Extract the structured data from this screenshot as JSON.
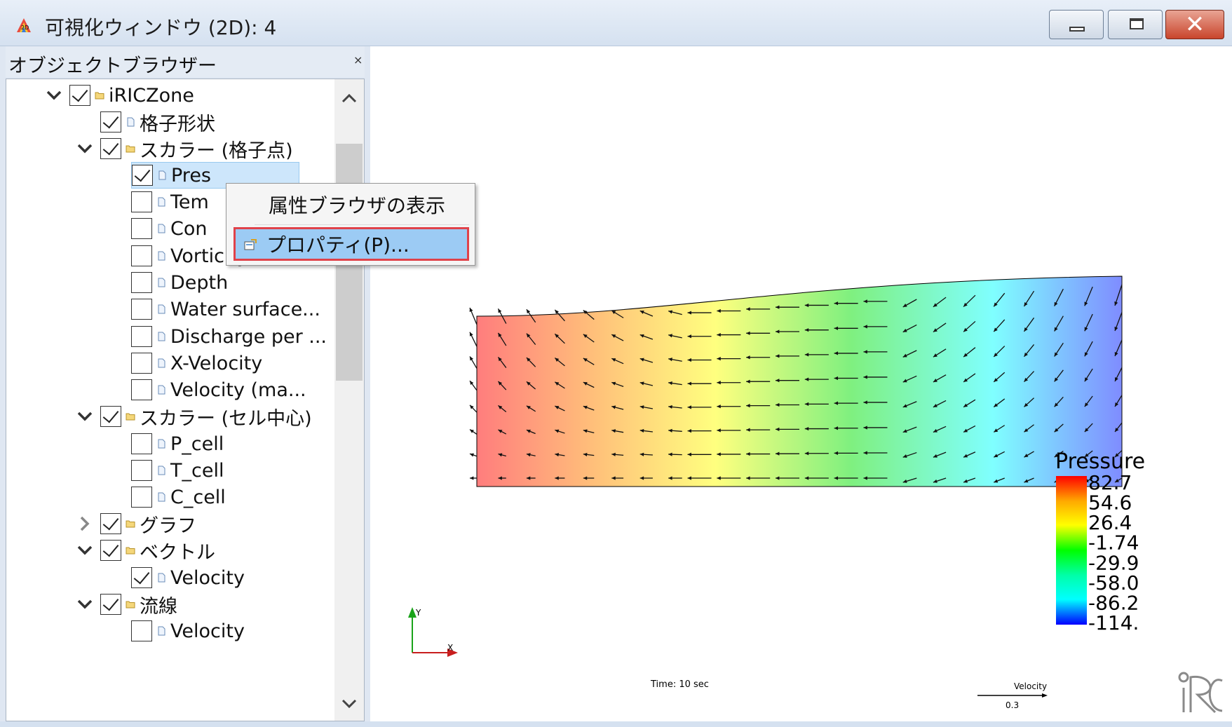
{
  "window": {
    "title": "可視化ウィンドウ (2D): 4",
    "close_glyph": "✕"
  },
  "object_browser": {
    "title": "オブジェクトブラウザー",
    "close_glyph": "×",
    "items": [
      {
        "label": "iRICZone",
        "checked": true,
        "kind": "folder",
        "chevron": "down"
      },
      {
        "label": "格子形状",
        "checked": true,
        "kind": "file"
      },
      {
        "label": "スカラー (格子点)",
        "checked": true,
        "kind": "folder",
        "chevron": "down"
      },
      {
        "label": "Pres",
        "checked": true,
        "kind": "file",
        "selected": true
      },
      {
        "label": "Tem",
        "checked": false,
        "kind": "file"
      },
      {
        "label": "Con",
        "checked": false,
        "kind": "file"
      },
      {
        "label": "Vorticity",
        "checked": false,
        "kind": "file"
      },
      {
        "label": "Depth",
        "checked": false,
        "kind": "file"
      },
      {
        "label": "Water surface...",
        "checked": false,
        "kind": "file"
      },
      {
        "label": "Discharge per ...",
        "checked": false,
        "kind": "file"
      },
      {
        "label": "X-Velocity",
        "checked": false,
        "kind": "file"
      },
      {
        "label": "Velocity (ma...",
        "checked": false,
        "kind": "file"
      },
      {
        "label": "スカラー (セル中心)",
        "checked": true,
        "kind": "folder",
        "chevron": "down"
      },
      {
        "label": "P_cell",
        "checked": false,
        "kind": "file"
      },
      {
        "label": "T_cell",
        "checked": false,
        "kind": "file"
      },
      {
        "label": "C_cell",
        "checked": false,
        "kind": "file"
      },
      {
        "label": "グラフ",
        "checked": true,
        "kind": "folder",
        "chevron": "right"
      },
      {
        "label": "ベクトル",
        "checked": true,
        "kind": "folder",
        "chevron": "down"
      },
      {
        "label": "Velocity",
        "checked": true,
        "kind": "file"
      },
      {
        "label": "流線",
        "checked": true,
        "kind": "folder",
        "chevron": "down"
      },
      {
        "label": "Velocity",
        "checked": false,
        "kind": "file"
      }
    ]
  },
  "context_menu": {
    "items": [
      {
        "label": "属性ブラウザの表示",
        "highlighted": false
      },
      {
        "label": "プロパティ(P)...",
        "highlighted": true,
        "icon": "properties-icon"
      }
    ]
  },
  "view": {
    "legend_title": "Pressure",
    "legend_ticks": [
      "82.7",
      "54.6",
      "26.4",
      "-1.74",
      "-29.9",
      "-58.0",
      "-86.2",
      "-114."
    ],
    "time_label": "Time:  10 sec",
    "velocity_legend_title": "Velocity",
    "velocity_legend_value": "0.3",
    "axis_y": "Y",
    "axis_x": "X",
    "logo": "iRIC"
  },
  "colors": {
    "highlight_border": "#e0424a",
    "menu_highlight": "#9ccbf4",
    "close_button": "#c9452c"
  }
}
